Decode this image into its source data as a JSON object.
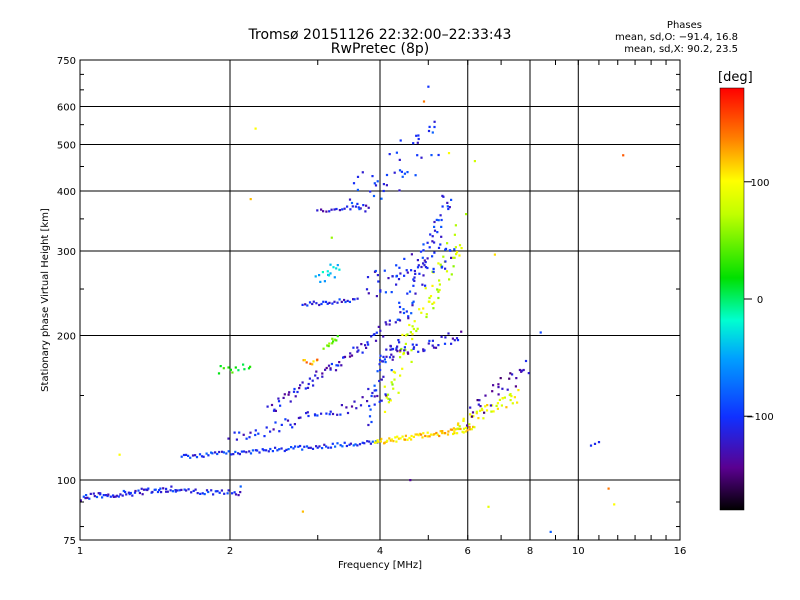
{
  "header": {
    "title_line1": "Tromsø 20151126 22:32:00–22:33:43",
    "title_line2": "RwPretec (8p)"
  },
  "phase_box": {
    "label": "Phases",
    "line_o": "mean, sd,O: −91.4, 16.8",
    "line_x": "mean, sd,X:  90.2, 23.5"
  },
  "colorbar": {
    "title": "[deg]",
    "ticks": [
      {
        "value": 100,
        "label": "100"
      },
      {
        "value": 0,
        "label": "0"
      },
      {
        "value": -100,
        "label": "−100"
      }
    ],
    "range": [
      -180,
      180
    ]
  },
  "chart_data": {
    "type": "scatter",
    "xlabel": "Frequency [MHz]",
    "ylabel": "Stationary phase Virtual Height [km]",
    "x_scale": "log",
    "y_scale": "log",
    "xlim": [
      1,
      16
    ],
    "ylim": [
      75,
      750
    ],
    "x_ticks": [
      {
        "value": 1,
        "label": "1"
      },
      {
        "value": 2,
        "label": "2"
      },
      {
        "value": 4,
        "label": "4"
      },
      {
        "value": 6,
        "label": "6"
      },
      {
        "value": 8,
        "label": "8"
      },
      {
        "value": 10,
        "label": "10"
      },
      {
        "value": 16,
        "label": "16"
      }
    ],
    "y_ticks": [
      {
        "value": 75,
        "label": "75"
      },
      {
        "value": 100,
        "label": "100"
      },
      {
        "value": 200,
        "label": "200"
      },
      {
        "value": 300,
        "label": "300"
      },
      {
        "value": 400,
        "label": "400"
      },
      {
        "value": 500,
        "label": "500"
      },
      {
        "value": 600,
        "label": "600"
      },
      {
        "value": 750,
        "label": "750"
      }
    ],
    "grid": true,
    "color_variable": "phase",
    "traces": [
      {
        "f_start": 1.0,
        "f_end": 1.55,
        "h_start": 92,
        "h_end": 96,
        "n": 60,
        "jitter": 0.015,
        "phase": -110
      },
      {
        "f_start": 1.55,
        "f_end": 2.1,
        "h_start": 95,
        "h_end": 94,
        "n": 30,
        "jitter": 0.012,
        "phase": -105
      },
      {
        "f_start": 1.6,
        "f_end": 4.0,
        "h_start": 112,
        "h_end": 120,
        "n": 90,
        "jitter": 0.01,
        "phase": -100
      },
      {
        "f_start": 2.0,
        "f_end": 4.2,
        "h_start": 122,
        "h_end": 150,
        "n": 55,
        "jitter": 0.03,
        "phase": -115
      },
      {
        "f_start": 2.4,
        "f_end": 4.2,
        "h_start": 140,
        "h_end": 210,
        "n": 70,
        "jitter": 0.03,
        "phase": -120
      },
      {
        "f_start": 3.9,
        "f_end": 6.2,
        "h_start": 120,
        "h_end": 128,
        "n": 70,
        "jitter": 0.012,
        "phase": 110
      },
      {
        "f_start": 5.6,
        "f_end": 7.6,
        "h_start": 128,
        "h_end": 150,
        "n": 45,
        "jitter": 0.03,
        "phase": 95
      },
      {
        "f_start": 2.8,
        "f_end": 3.6,
        "h_start": 232,
        "h_end": 238,
        "n": 25,
        "jitter": 0.01,
        "phase": -110
      },
      {
        "f_start": 3.0,
        "f_end": 3.8,
        "h_start": 365,
        "h_end": 372,
        "n": 20,
        "jitter": 0.01,
        "phase": -115
      },
      {
        "f_start": 3.8,
        "f_end": 5.5,
        "h_start": 138,
        "h_end": 400,
        "n": 90,
        "jitter": 0.08,
        "phase": -105
      },
      {
        "f_start": 4.1,
        "f_end": 5.8,
        "h_start": 145,
        "h_end": 330,
        "n": 80,
        "jitter": 0.09,
        "phase": 80
      },
      {
        "f_start": 4.0,
        "f_end": 5.8,
        "h_start": 180,
        "h_end": 200,
        "n": 40,
        "jitter": 0.03,
        "phase": -120
      },
      {
        "f_start": 3.8,
        "f_end": 5.6,
        "h_start": 255,
        "h_end": 300,
        "n": 55,
        "jitter": 0.07,
        "phase": -110
      },
      {
        "f_start": 3.5,
        "f_end": 5.2,
        "h_start": 380,
        "h_end": 520,
        "n": 45,
        "jitter": 0.1,
        "phase": -100
      },
      {
        "f_start": 1.9,
        "f_end": 2.2,
        "h_start": 170,
        "h_end": 172,
        "n": 12,
        "jitter": 0.02,
        "phase": 20
      },
      {
        "f_start": 3.1,
        "f_end": 3.3,
        "h_start": 190,
        "h_end": 198,
        "n": 10,
        "jitter": 0.02,
        "phase": 40
      },
      {
        "f_start": 2.8,
        "f_end": 3.0,
        "h_start": 178,
        "h_end": 175,
        "n": 8,
        "jitter": 0.02,
        "phase": 130
      },
      {
        "f_start": 3.0,
        "f_end": 3.3,
        "h_start": 265,
        "h_end": 280,
        "n": 15,
        "jitter": 0.04,
        "phase": -40
      },
      {
        "f_start": 6.0,
        "f_end": 8.0,
        "h_start": 135,
        "h_end": 175,
        "n": 30,
        "jitter": 0.05,
        "phase": -130
      }
    ],
    "points": [
      {
        "f": 10.8,
        "h": 119,
        "phase": -110
      },
      {
        "f": 11.0,
        "h": 120,
        "phase": -110
      },
      {
        "f": 10.6,
        "h": 118,
        "phase": -105
      },
      {
        "f": 12.3,
        "h": 475,
        "phase": 150
      },
      {
        "f": 8.4,
        "h": 203,
        "phase": -90
      },
      {
        "f": 8.8,
        "h": 78,
        "phase": -80
      },
      {
        "f": 2.25,
        "h": 540,
        "phase": 100
      },
      {
        "f": 2.2,
        "h": 385,
        "phase": 120
      },
      {
        "f": 6.8,
        "h": 295,
        "phase": 110
      },
      {
        "f": 6.2,
        "h": 462,
        "phase": 80
      },
      {
        "f": 5.0,
        "h": 660,
        "phase": -100
      },
      {
        "f": 4.9,
        "h": 615,
        "phase": 140
      },
      {
        "f": 5.5,
        "h": 480,
        "phase": 100
      },
      {
        "f": 2.8,
        "h": 86,
        "phase": 120
      },
      {
        "f": 4.6,
        "h": 100,
        "phase": -140
      },
      {
        "f": 6.6,
        "h": 88,
        "phase": 90
      },
      {
        "f": 11.5,
        "h": 96,
        "phase": 140
      },
      {
        "f": 11.8,
        "h": 89,
        "phase": 100
      },
      {
        "f": 1.2,
        "h": 113,
        "phase": 100
      },
      {
        "f": 2.1,
        "h": 97,
        "phase": -80
      },
      {
        "f": 4.4,
        "h": 510,
        "phase": -100
      },
      {
        "f": 3.2,
        "h": 320,
        "phase": 60
      }
    ]
  }
}
